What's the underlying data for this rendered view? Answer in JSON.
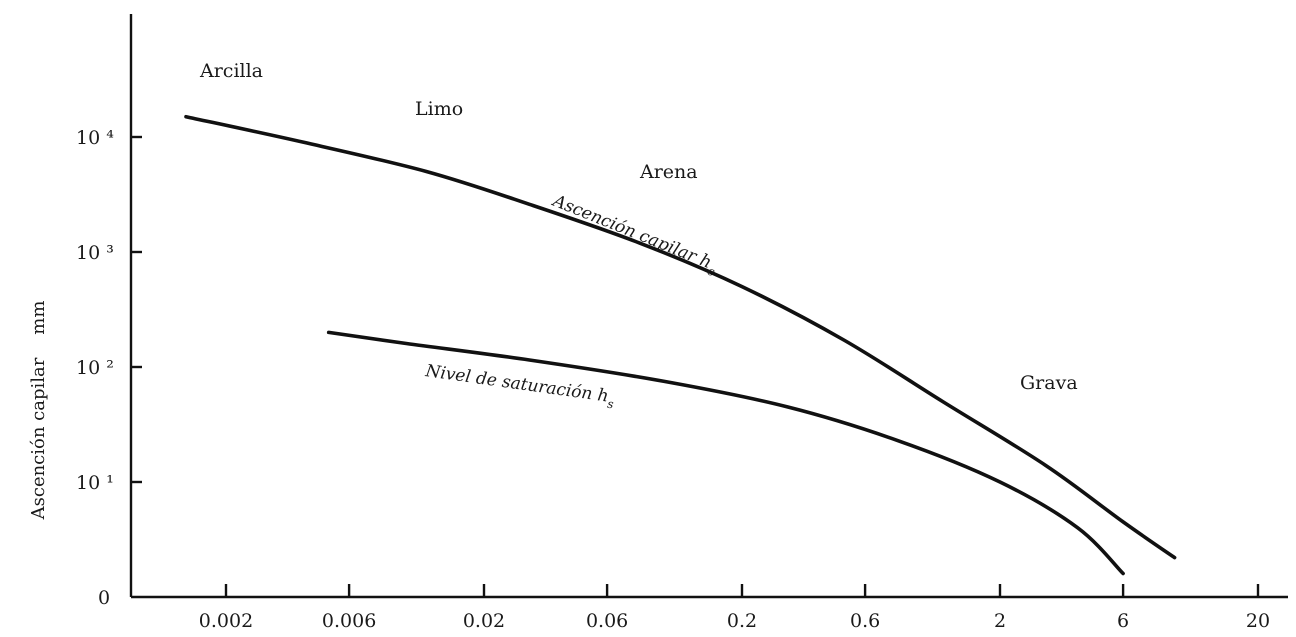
{
  "chart_data": {
    "type": "line",
    "title": "",
    "ylabel": "Ascención capilar    mm",
    "xlabel": "",
    "x_scale": "log",
    "y_scale": "log",
    "x_ticks": [
      "0.002",
      "0.006",
      "0.02",
      "0.06",
      "0.2",
      "0.6",
      "2",
      "6",
      "20"
    ],
    "y_ticks": [
      "0",
      "10 ¹",
      "10 ²",
      "10 ³",
      "10 ⁴"
    ],
    "regions": [
      "Arcilla",
      "Limo",
      "Arena",
      "Grava"
    ],
    "grid": false,
    "series": [
      {
        "name": "Ascención capilar h",
        "name_sub": "c",
        "x": [
          0.0014,
          0.004,
          0.012,
          0.03,
          0.08,
          0.2,
          0.5,
          1.2,
          3,
          6,
          9.5
        ],
        "y": [
          15000,
          9000,
          5000,
          2600,
          1200,
          500,
          170,
          50,
          14,
          4.5,
          2.2
        ]
      },
      {
        "name": "Nivel de saturación h",
        "name_sub": "s",
        "x": [
          0.005,
          0.01,
          0.03,
          0.1,
          0.3,
          0.8,
          2,
          4,
          6
        ],
        "y": [
          200,
          160,
          115,
          75,
          45,
          23,
          10,
          4,
          1.6
        ]
      }
    ]
  }
}
